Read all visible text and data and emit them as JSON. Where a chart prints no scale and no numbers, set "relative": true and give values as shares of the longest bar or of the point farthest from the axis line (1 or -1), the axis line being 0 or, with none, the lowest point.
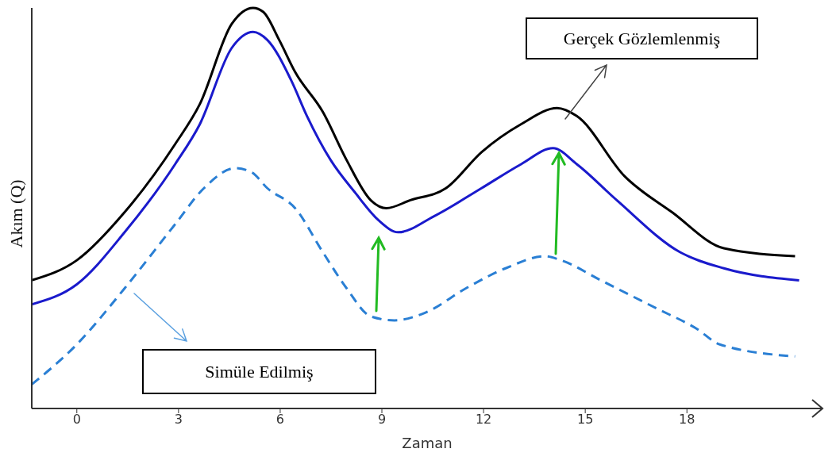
{
  "chart_data": {
    "type": "line",
    "xlabel": "Zaman",
    "ylabel": "Akım (Q)",
    "relative": true,
    "xlim": [
      -1.33,
      22
    ],
    "xticks": [
      0,
      3,
      6,
      9,
      12,
      15,
      18
    ],
    "marker": "none",
    "annotations": [
      "Gerçek Gözlemlenmiş",
      "Simüle Edilmiş"
    ],
    "series": [
      {
        "color": "#000000",
        "line_style": "solid",
        "x": [
          -1.33,
          0,
          1.41,
          2.9,
          3.63,
          4.57,
          5.2,
          5.5,
          5.97,
          6.44,
          7.26,
          7.96,
          8.67,
          9.13,
          9.84,
          10.89,
          11.94,
          13.11,
          14.17,
          14.75,
          16.16,
          17.56,
          19.09,
          21.19
        ],
        "values": [
          0.32,
          0.37,
          0.49,
          0.66,
          0.76,
          0.96,
          1,
          0.99,
          0.92,
          0.84,
          0.74,
          0.62,
          0.52,
          0.5,
          0.52,
          0.55,
          0.64,
          0.71,
          0.75,
          0.73,
          0.58,
          0.49,
          0.4,
          0.38
        ]
      },
      {
        "color": "#1a1acc",
        "line_style": "solid",
        "x": [
          -1.33,
          0,
          1.41,
          2.9,
          3.63,
          4.57,
          5.2,
          5.62,
          6.32,
          6.79,
          7.49,
          8.2,
          8.9,
          9.48,
          10.54,
          11.94,
          13.11,
          14.05,
          14.75,
          15.93,
          17.8,
          19.09,
          21.31
        ],
        "values": [
          0.26,
          0.31,
          0.44,
          0.61,
          0.71,
          0.9,
          0.94,
          0.92,
          0.82,
          0.73,
          0.62,
          0.54,
          0.47,
          0.44,
          0.48,
          0.55,
          0.61,
          0.65,
          0.61,
          0.52,
          0.39,
          0.35,
          0.32
        ]
      },
      {
        "color": "#2a7fd4",
        "line_style": "dashed",
        "x": [
          -1.33,
          0,
          1.41,
          2.9,
          3.75,
          4.68,
          5.15,
          5.62,
          6.44,
          7.26,
          7.96,
          8.67,
          9.37,
          10.3,
          11.48,
          12.65,
          13.82,
          14.29,
          15.46,
          17.1,
          18.27,
          18.97,
          21.19
        ],
        "values": [
          0.06,
          0.16,
          0.3,
          0.46,
          0.55,
          0.6,
          0.59,
          0.55,
          0.5,
          0.39,
          0.3,
          0.23,
          0.22,
          0.24,
          0.3,
          0.35,
          0.38,
          0.37,
          0.32,
          0.25,
          0.2,
          0.16,
          0.13
        ]
      }
    ]
  }
}
